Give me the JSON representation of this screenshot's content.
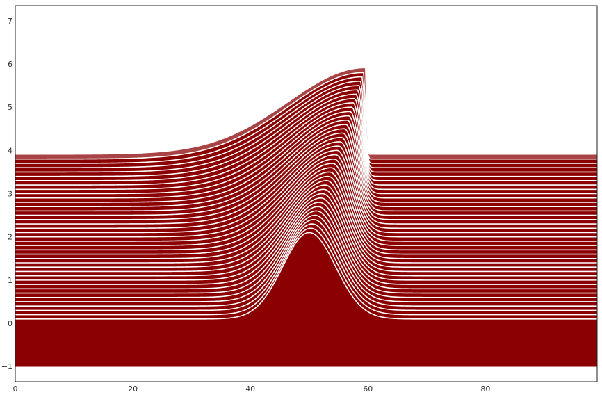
{
  "chart_data": {
    "type": "area",
    "title": "",
    "xlabel": "",
    "ylabel": "",
    "xlim": [
      0,
      99
    ],
    "ylim": [
      -1.35,
      7.35
    ],
    "baseline": -1.0,
    "grid": false,
    "legend": "none",
    "x_ticks": [
      {
        "value": 0,
        "label": "0"
      },
      {
        "value": 20,
        "label": "20"
      },
      {
        "value": 40,
        "label": "40"
      },
      {
        "value": 60,
        "label": "60"
      },
      {
        "value": 80,
        "label": "80"
      }
    ],
    "y_ticks": [
      {
        "value": -1,
        "label": "−1"
      },
      {
        "value": 0,
        "label": "0"
      },
      {
        "value": 1,
        "label": "1"
      },
      {
        "value": 2,
        "label": "2"
      },
      {
        "value": 3,
        "label": "3"
      },
      {
        "value": 4,
        "label": "4"
      },
      {
        "value": 5,
        "label": "5"
      },
      {
        "value": 6,
        "label": "6"
      },
      {
        "value": 7,
        "label": "7"
      }
    ],
    "series_model": {
      "description": "Stacked waterfall of a steepening pulse; each curve is offset by a constant and drawn on a dark-red fill with white outline.",
      "count": 39,
      "offset_start": 0.1,
      "offset_step": 0.1,
      "pulse_amplitude": 2.0,
      "pulse_center_start": 50,
      "pulse_center_end": 59.5,
      "pulse_width": 4.5,
      "x_min": 0,
      "x_max": 99
    },
    "colors": {
      "fill": "#8b0000",
      "top_fill": "#a84446",
      "outline": "#ffffff",
      "axes": "#222222",
      "background": "#ffffff"
    }
  }
}
